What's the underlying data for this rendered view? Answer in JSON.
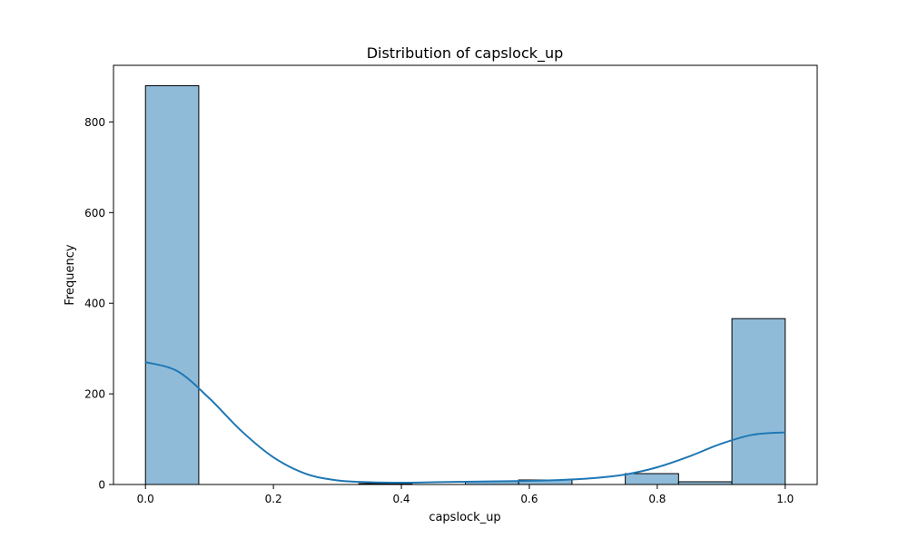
{
  "chart_data": {
    "type": "bar",
    "title": "Distribution of capslock_up",
    "xlabel": "capslock_up",
    "ylabel": "Frequency",
    "xlim": [
      -0.05,
      1.05
    ],
    "ylim": [
      0,
      925
    ],
    "xticks": [
      0.0,
      0.2,
      0.4,
      0.6,
      0.8,
      1.0
    ],
    "xtick_labels": [
      "0.0",
      "0.2",
      "0.4",
      "0.6",
      "0.8",
      "1.0"
    ],
    "yticks": [
      0,
      200,
      400,
      600,
      800
    ],
    "ytick_labels": [
      "0",
      "200",
      "400",
      "600",
      "800"
    ],
    "grid": false,
    "bins": [
      {
        "x0": 0.0,
        "x1": 0.0833,
        "value": 880
      },
      {
        "x0": 0.0833,
        "x1": 0.1667,
        "value": 0
      },
      {
        "x0": 0.1667,
        "x1": 0.25,
        "value": 0
      },
      {
        "x0": 0.25,
        "x1": 0.3333,
        "value": 0
      },
      {
        "x0": 0.3333,
        "x1": 0.4167,
        "value": 2
      },
      {
        "x0": 0.4167,
        "x1": 0.5,
        "value": 0
      },
      {
        "x0": 0.5,
        "x1": 0.5833,
        "value": 7
      },
      {
        "x0": 0.5833,
        "x1": 0.6667,
        "value": 10
      },
      {
        "x0": 0.6667,
        "x1": 0.75,
        "value": 0
      },
      {
        "x0": 0.75,
        "x1": 0.8333,
        "value": 24
      },
      {
        "x0": 0.8333,
        "x1": 0.9167,
        "value": 6
      },
      {
        "x0": 0.9167,
        "x1": 1.0,
        "value": 366
      }
    ],
    "kde": {
      "x": [
        0.0,
        0.05,
        0.1,
        0.15,
        0.2,
        0.25,
        0.3,
        0.35,
        0.4,
        0.45,
        0.5,
        0.55,
        0.6,
        0.65,
        0.7,
        0.75,
        0.8,
        0.85,
        0.9,
        0.95,
        1.0
      ],
      "y": [
        270,
        250,
        190,
        118,
        60,
        24,
        9,
        5,
        4,
        5,
        6,
        7,
        8,
        10,
        14,
        22,
        38,
        62,
        90,
        110,
        115
      ]
    },
    "colors": {
      "bar_fill": "#8fbbd9",
      "bar_edge": "#000000",
      "kde_line": "#1f77b4"
    }
  }
}
